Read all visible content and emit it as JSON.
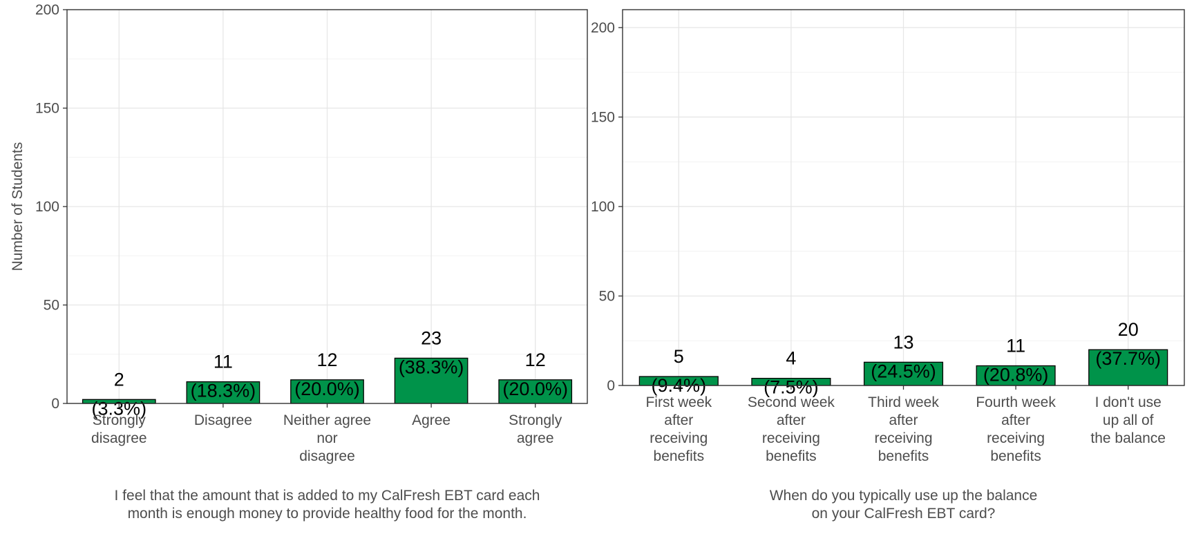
{
  "chart_data": [
    {
      "type": "bar",
      "title": "",
      "xlabel": [
        "I feel that the amount that is added to my CalFresh EBT card each",
        "month is enough money to provide healthy food for the month."
      ],
      "ylabel": "Number of Students",
      "ylim": [
        0,
        200
      ],
      "yticks": [
        "0",
        "50",
        "100",
        "150",
        "200"
      ],
      "grid": true,
      "categories": [
        [
          "Strongly",
          "disagree"
        ],
        [
          "Disagree"
        ],
        [
          "Neither agree",
          "nor",
          "disagree"
        ],
        [
          "Agree"
        ],
        [
          "Strongly",
          "agree"
        ]
      ],
      "values": [
        2,
        11,
        12,
        23,
        12
      ],
      "labels": [
        [
          "2",
          "(3.3%)"
        ],
        [
          "11",
          "(18.3%)"
        ],
        [
          "12",
          "(20.0%)"
        ],
        [
          "23",
          "(38.3%)"
        ],
        [
          "12",
          "(20.0%)"
        ]
      ],
      "bar_color": "#00934a"
    },
    {
      "type": "bar",
      "title": "",
      "xlabel": [
        "When do you typically use up the balance",
        "on your CalFresh EBT card?"
      ],
      "ylabel": "",
      "ylim": [
        0,
        210
      ],
      "yticks": [
        "0",
        "50",
        "100",
        "150",
        "200"
      ],
      "grid": true,
      "categories": [
        [
          "First week",
          "after",
          "receiving",
          "benefits"
        ],
        [
          "Second week",
          "after",
          "receiving",
          "benefits"
        ],
        [
          "Third week",
          "after",
          "receiving",
          "benefits"
        ],
        [
          "Fourth week",
          "after",
          "receiving",
          "benefits"
        ],
        [
          "I don't use",
          "up all of",
          "the balance"
        ]
      ],
      "values": [
        5,
        4,
        13,
        11,
        20
      ],
      "labels": [
        [
          "5",
          "(9.4%)"
        ],
        [
          "4",
          "(7.5%)"
        ],
        [
          "13",
          "(24.5%)"
        ],
        [
          "11",
          "(20.8%)"
        ],
        [
          "20",
          "(37.7%)"
        ]
      ],
      "bar_color": "#00934a"
    }
  ]
}
